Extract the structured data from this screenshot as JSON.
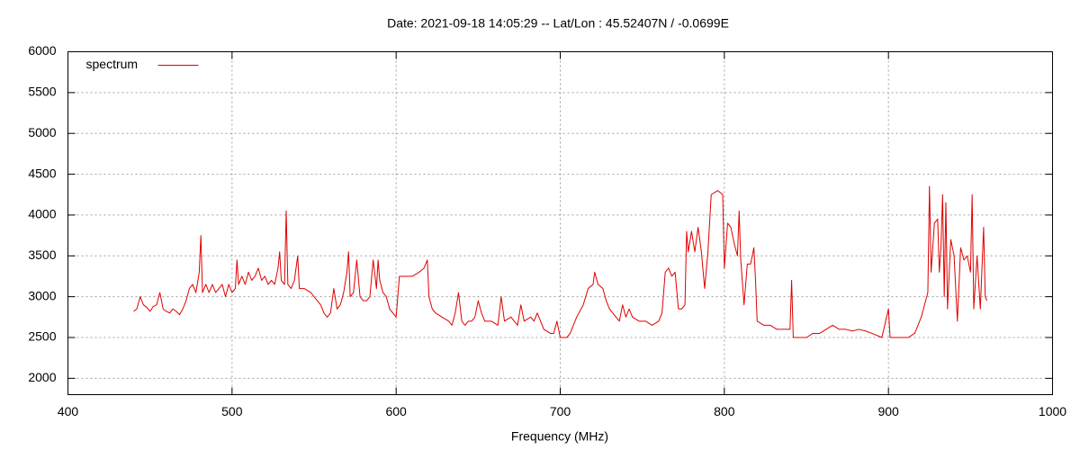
{
  "chart_data": {
    "type": "line",
    "title": "Date: 2021-09-18 14:05:29  --  Lat/Lon : 45.52407N / -0.0699E",
    "x_label": "Frequency (MHz)",
    "xlim": [
      400,
      1000
    ],
    "xticks": [
      400,
      500,
      600,
      700,
      800,
      900,
      1000
    ],
    "ylim": [
      1800,
      6000
    ],
    "yticks": [
      2000,
      2500,
      3000,
      3500,
      4000,
      4500,
      5000,
      5500,
      6000
    ],
    "grid": true,
    "legend": "top-left",
    "x": [
      440,
      442,
      444,
      446,
      448,
      450,
      452,
      454,
      456,
      458,
      460,
      462,
      464,
      466,
      468,
      470,
      472,
      474,
      476,
      478,
      480,
      481,
      482,
      484,
      486,
      488,
      490,
      492,
      494,
      496,
      498,
      500,
      502,
      503,
      504,
      506,
      508,
      510,
      512,
      514,
      516,
      518,
      520,
      522,
      524,
      526,
      528,
      529,
      530,
      532,
      533,
      534,
      536,
      538,
      540,
      541,
      544,
      548,
      550,
      552,
      554,
      556,
      558,
      560,
      562,
      564,
      566,
      568,
      570,
      571,
      572,
      574,
      576,
      578,
      580,
      582,
      584,
      586,
      588,
      589,
      590,
      592,
      594,
      596,
      598,
      600,
      602,
      606,
      610,
      614,
      617,
      619,
      620,
      622,
      624,
      628,
      632,
      634,
      636,
      638,
      640,
      642,
      644,
      646,
      648,
      650,
      652,
      654,
      658,
      662,
      664,
      666,
      670,
      674,
      676,
      678,
      682,
      684,
      686,
      688,
      690,
      694,
      696,
      698,
      700,
      704,
      706,
      708,
      710,
      714,
      717,
      720,
      721,
      723,
      726,
      728,
      730,
      732,
      734,
      736,
      738,
      740,
      742,
      744,
      748,
      752,
      756,
      760,
      762,
      764,
      766,
      768,
      770,
      772,
      774,
      776,
      777,
      778,
      780,
      782,
      784,
      786,
      788,
      790,
      792,
      796,
      799,
      800,
      802,
      804,
      806,
      808,
      809,
      810,
      812,
      814,
      816,
      818,
      819,
      820,
      824,
      828,
      832,
      836,
      840,
      841,
      842,
      846,
      850,
      854,
      858,
      862,
      866,
      870,
      874,
      878,
      882,
      886,
      890,
      896,
      900,
      901,
      906,
      912,
      916,
      918,
      920,
      922,
      924,
      925,
      926,
      928,
      930,
      931,
      932,
      933,
      934,
      935,
      936,
      938,
      940,
      942,
      944,
      946,
      948,
      950,
      951,
      952,
      954,
      956,
      958,
      959,
      960
    ],
    "series": [
      {
        "name": "spectrum",
        "color": "#e00000",
        "values": [
          2820,
          2850,
          3000,
          2900,
          2870,
          2820,
          2880,
          2900,
          3050,
          2850,
          2820,
          2800,
          2850,
          2820,
          2780,
          2850,
          2950,
          3100,
          3150,
          3050,
          3300,
          3750,
          3050,
          3150,
          3050,
          3150,
          3050,
          3100,
          3150,
          3000,
          3150,
          3050,
          3100,
          3450,
          3150,
          3250,
          3150,
          3300,
          3200,
          3250,
          3350,
          3200,
          3250,
          3150,
          3200,
          3150,
          3350,
          3550,
          3200,
          3150,
          4050,
          3150,
          3100,
          3200,
          3500,
          3100,
          3100,
          3050,
          3000,
          2950,
          2900,
          2800,
          2750,
          2800,
          3100,
          2850,
          2900,
          3050,
          3300,
          3550,
          3000,
          3050,
          3450,
          3000,
          2950,
          2950,
          3000,
          3450,
          3100,
          3450,
          3200,
          3050,
          3000,
          2850,
          2800,
          2750,
          3250,
          3250,
          3250,
          3300,
          3350,
          3450,
          3000,
          2850,
          2800,
          2750,
          2700,
          2650,
          2800,
          3050,
          2700,
          2650,
          2700,
          2700,
          2750,
          2950,
          2800,
          2700,
          2700,
          2650,
          3000,
          2700,
          2750,
          2650,
          2900,
          2700,
          2750,
          2700,
          2800,
          2700,
          2600,
          2550,
          2550,
          2700,
          2500,
          2500,
          2550,
          2650,
          2750,
          2900,
          3100,
          3150,
          3300,
          3150,
          3100,
          2950,
          2850,
          2800,
          2750,
          2700,
          2900,
          2750,
          2850,
          2750,
          2700,
          2700,
          2650,
          2700,
          2800,
          3300,
          3350,
          3250,
          3300,
          2850,
          2850,
          2900,
          3800,
          3550,
          3800,
          3550,
          3850,
          3550,
          3100,
          3550,
          4250,
          4300,
          4250,
          3350,
          3900,
          3850,
          3650,
          3500,
          4050,
          3450,
          2900,
          3400,
          3400,
          3600,
          3200,
          2700,
          2650,
          2650,
          2600,
          2600,
          2600,
          3200,
          2500,
          2500,
          2500,
          2550,
          2550,
          2600,
          2650,
          2600,
          2600,
          2580,
          2600,
          2580,
          2550,
          2500,
          2850,
          2500,
          2500,
          2500,
          2550,
          2650,
          2750,
          2900,
          3050,
          4350,
          3300,
          3900,
          3950,
          3300,
          3600,
          4250,
          3000,
          4150,
          2850,
          3700,
          3500,
          2700,
          3600,
          3450,
          3500,
          3300,
          4250,
          2850,
          3500,
          2850,
          3850,
          3000,
          2950
        ]
      }
    ]
  }
}
